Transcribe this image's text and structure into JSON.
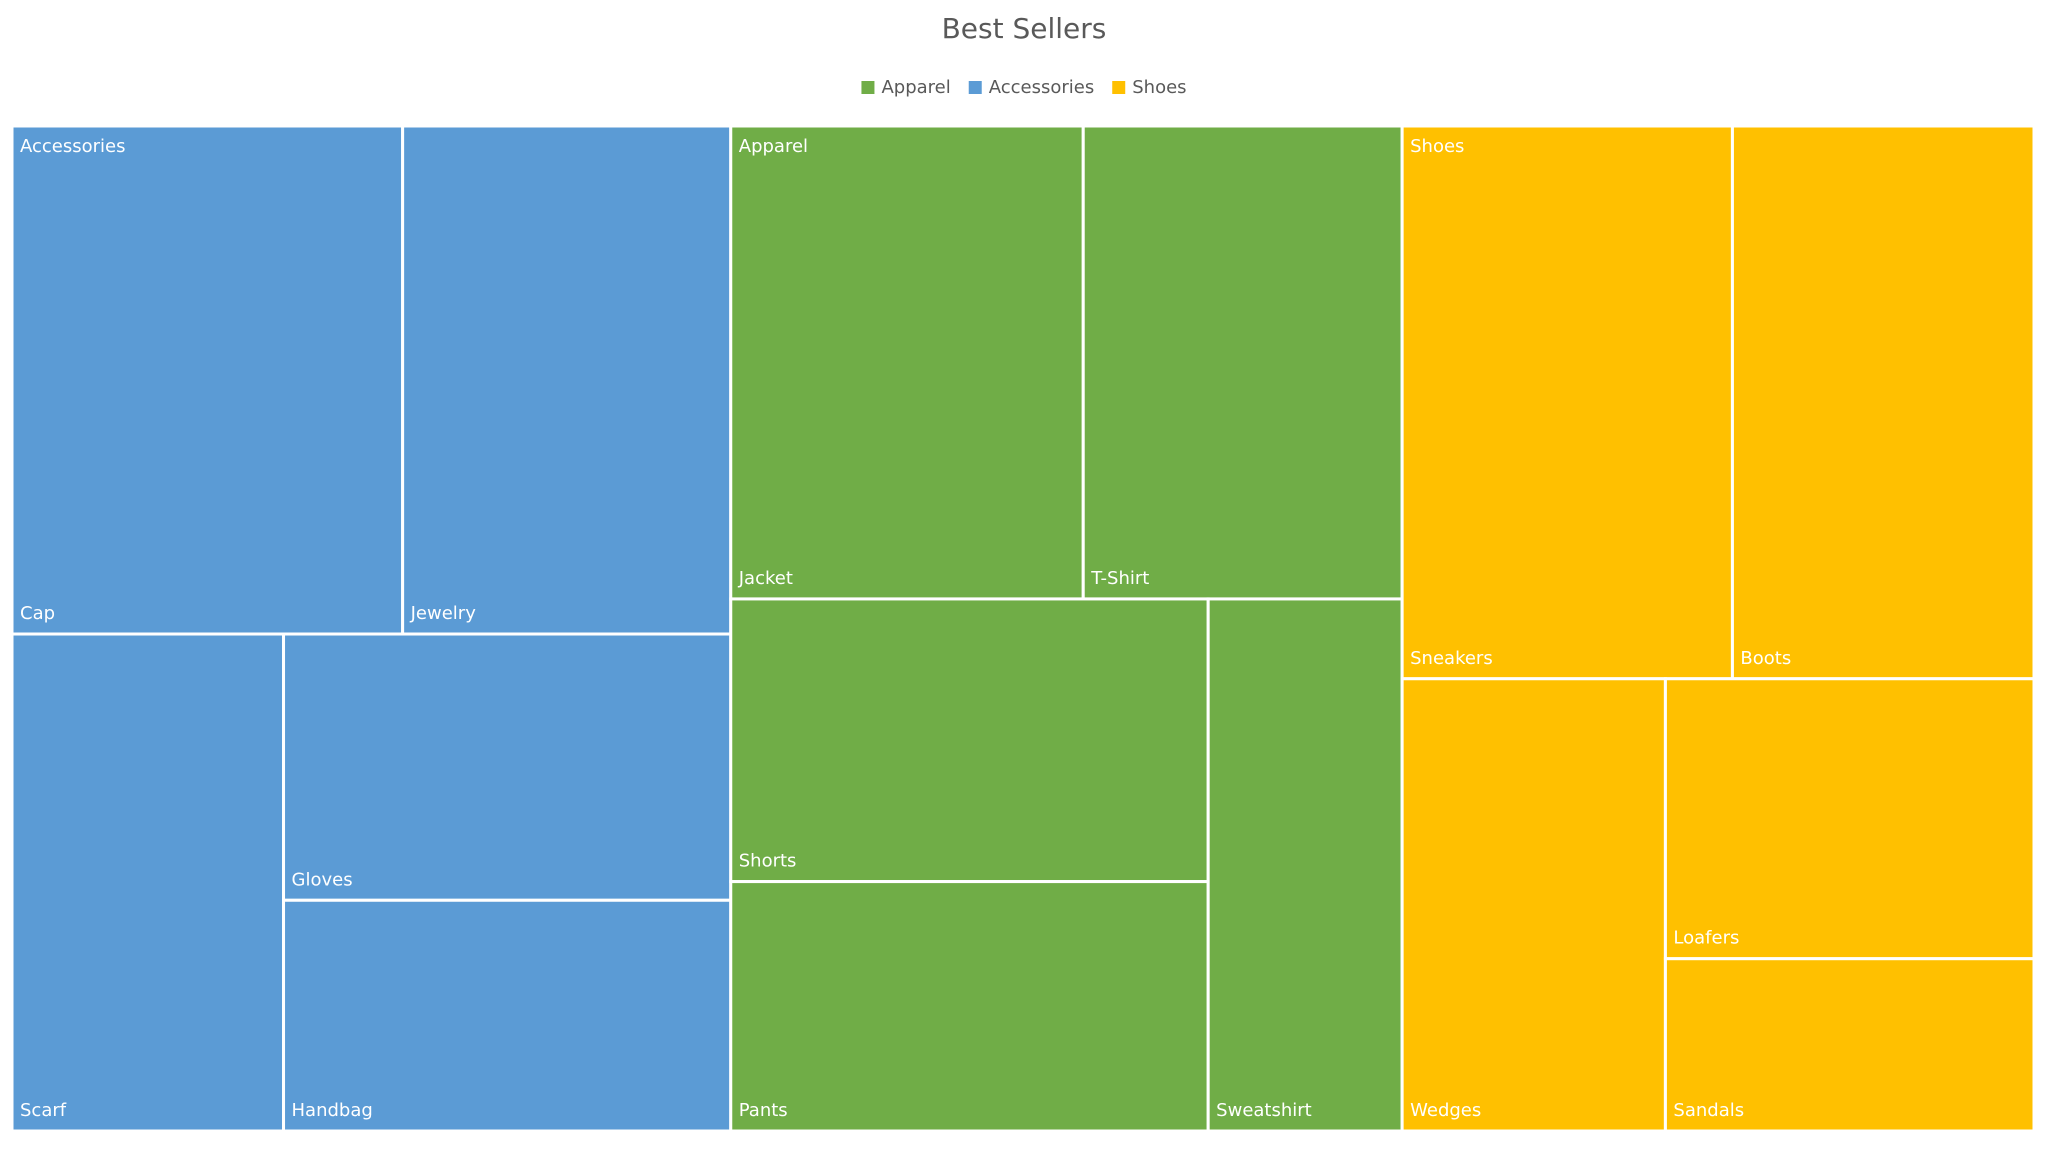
{
  "chart_data": {
    "type": "treemap",
    "title": "Best Sellers",
    "series": [
      {
        "name": "Accessories",
        "color": "#5b9bd5",
        "categories": [
          "Cap",
          "Jewelry",
          "Scarf",
          "Gloves",
          "Handbag"
        ],
        "values": [
          25,
          21,
          17,
          15,
          13
        ]
      },
      {
        "name": "Apparel",
        "color": "#70ad47",
        "categories": [
          "Jacket",
          "T-Shirt",
          "Shorts",
          "Pants",
          "Sweatshirt"
        ],
        "values": [
          21,
          19,
          17,
          15,
          13
        ]
      },
      {
        "name": "Shoes",
        "color": "#ffc000",
        "categories": [
          "Sneakers",
          "Boots",
          "Wedges",
          "Loafers",
          "Sandals"
        ],
        "values": [
          23,
          21,
          15,
          13,
          8
        ]
      }
    ]
  }
}
